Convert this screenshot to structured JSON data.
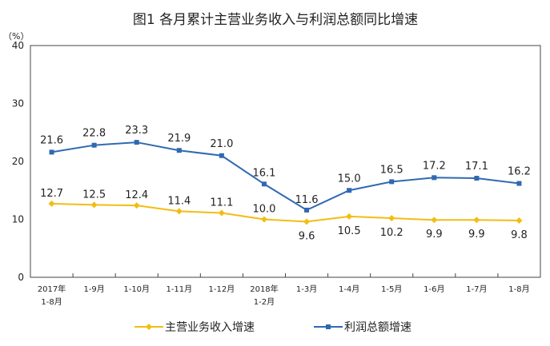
{
  "chart_data": {
    "type": "line",
    "title": "图1  各月累计主营业务收入与利润总额同比增速",
    "ylabel": "（%）",
    "ylim": [
      0,
      40
    ],
    "yticks": [
      0,
      10,
      20,
      30,
      40
    ],
    "grid": false,
    "legend_placement": "bottom",
    "categories": [
      [
        "2017年",
        "1-8月"
      ],
      [
        "1-9月"
      ],
      [
        "1-10月"
      ],
      [
        "1-11月"
      ],
      [
        "1-12月"
      ],
      [
        "2018年",
        "1-2月"
      ],
      [
        "1-3月"
      ],
      [
        "1-4月"
      ],
      [
        "1-5月"
      ],
      [
        "1-6月"
      ],
      [
        "1-7月"
      ],
      [
        "1-8月"
      ]
    ],
    "series": [
      {
        "name": "主营业务收入增速",
        "color": "#f2bd13",
        "marker": "diamond",
        "values": [
          12.7,
          12.5,
          12.4,
          11.4,
          11.1,
          10.0,
          9.6,
          10.5,
          10.2,
          9.9,
          9.9,
          9.8
        ],
        "labels": [
          "12.7",
          "12.5",
          "12.4",
          "11.4",
          "11.1",
          "10.0",
          "9.6",
          "10.5",
          "10.2",
          "9.9",
          "9.9",
          "9.8"
        ]
      },
      {
        "name": "利润总额增速",
        "color": "#2f69b1",
        "marker": "square",
        "values": [
          21.6,
          22.8,
          23.3,
          21.9,
          21.0,
          16.1,
          11.6,
          15.0,
          16.5,
          17.2,
          17.1,
          16.2
        ],
        "labels": [
          "21.6",
          "22.8",
          "23.3",
          "21.9",
          "21.0",
          "16.1",
          "11.6",
          "15.0",
          "16.5",
          "17.2",
          "17.1",
          "16.2"
        ]
      }
    ]
  }
}
